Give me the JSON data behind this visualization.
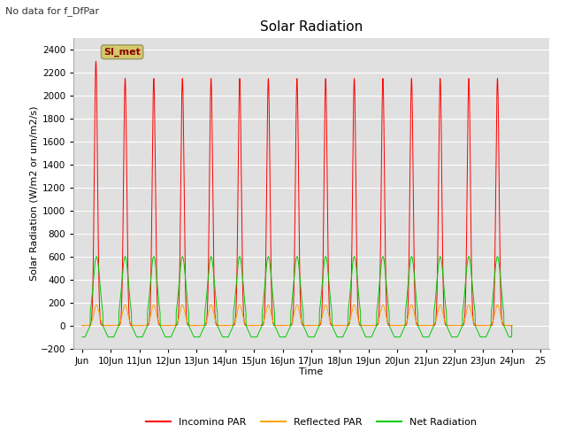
{
  "title": "Solar Radiation",
  "xlabel": "Time",
  "ylabel": "Solar Radiation (W/m2 or um/m2/s)",
  "ylim": [
    -200,
    2500
  ],
  "yticks": [
    -200,
    0,
    200,
    400,
    600,
    800,
    1000,
    1200,
    1400,
    1600,
    1800,
    2000,
    2200,
    2400
  ],
  "note_text": "No data for f_DfPar",
  "legend_label": "SI_met",
  "legend_box_color": "#d4c96b",
  "legend_box_text_color": "#8b0000",
  "bg_color": "#e0e0e0",
  "grid_color": "#ffffff",
  "line_colors": {
    "incoming": "#ff0000",
    "reflected": "#ffa500",
    "net": "#00cc00"
  },
  "n_days": 15,
  "day_start": 9,
  "points_per_day": 288,
  "incoming_peak": 2150,
  "reflected_peak": 180,
  "net_peak": 600,
  "net_trough": -100,
  "title_fontsize": 11,
  "label_fontsize": 8,
  "tick_fontsize": 7.5
}
